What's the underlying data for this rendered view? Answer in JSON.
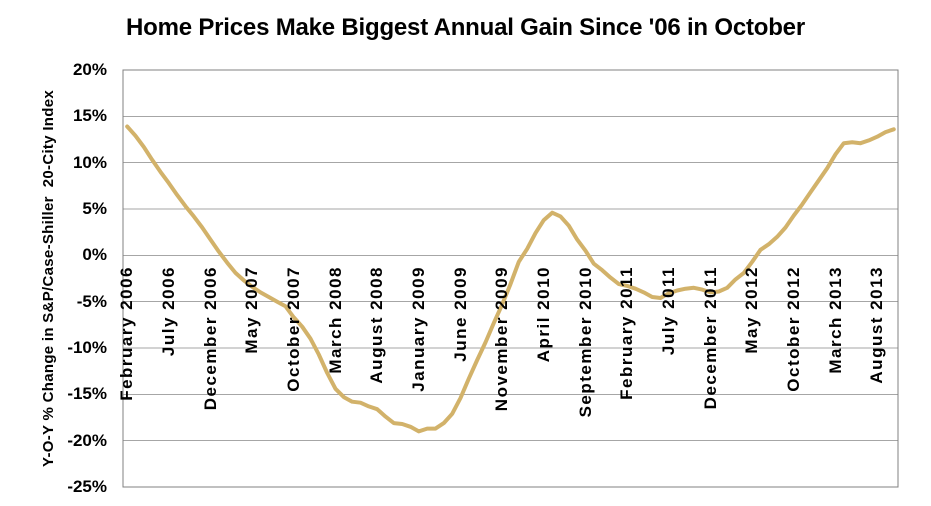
{
  "chart_data": {
    "type": "line",
    "title": "Home Prices Make Biggest Annual Gain Since '06 in October",
    "ylabel": "Y-O-Y % Change in S&P/Case-Shiller  20-City Index",
    "xlabel": "",
    "ylim": [
      -25,
      20
    ],
    "ytick_step_pct": 5,
    "ytick_labels": [
      "20%",
      "15%",
      "10%",
      "5%",
      "0%",
      "-5%",
      "-10%",
      "-15%",
      "-20%",
      "-25%"
    ],
    "x_interval": "monthly",
    "x_start": "February 2006",
    "x_end": "October 2013",
    "xtick_every": 5,
    "xtick_labels": [
      "February 2006",
      "July 2006",
      "December 2006",
      "May 2007",
      "October 2007",
      "March 2008",
      "August 2008",
      "January 2009",
      "June 2009",
      "November 2009",
      "April 2010",
      "September 2010",
      "February 2011",
      "July 2011",
      "December 2011",
      "May 2012",
      "October 2012",
      "March 2013",
      "August 2013"
    ],
    "values": [
      13.9,
      12.9,
      11.7,
      10.3,
      9.0,
      7.8,
      6.5,
      5.3,
      4.2,
      3.0,
      1.7,
      0.4,
      -0.8,
      -1.9,
      -2.7,
      -3.4,
      -4.0,
      -4.5,
      -5.0,
      -5.5,
      -6.7,
      -7.7,
      -9.0,
      -10.7,
      -12.7,
      -14.4,
      -15.3,
      -15.8,
      -15.9,
      -16.3,
      -16.6,
      -17.4,
      -18.1,
      -18.2,
      -18.5,
      -19.0,
      -18.7,
      -18.7,
      -18.1,
      -17.1,
      -15.4,
      -13.3,
      -11.3,
      -9.4,
      -7.3,
      -5.3,
      -3.1,
      -0.7,
      0.7,
      2.4,
      3.8,
      4.6,
      4.2,
      3.2,
      1.7,
      0.5,
      -0.9,
      -1.6,
      -2.4,
      -3.1,
      -3.3,
      -3.6,
      -4.0,
      -4.5,
      -4.6,
      -4.1,
      -3.8,
      -3.6,
      -3.5,
      -3.7,
      -4.0,
      -3.9,
      -3.5,
      -2.6,
      -1.9,
      -0.7,
      0.6,
      1.2,
      2.0,
      3.0,
      4.3,
      5.5,
      6.8,
      8.1,
      9.4,
      10.9,
      12.1,
      12.2,
      12.1,
      12.4,
      12.8,
      13.3,
      13.6
    ],
    "grid": true,
    "legend_position": "none",
    "line_color": "#D2B26A",
    "grid_color": "#A6A6A6",
    "axis_color": "#808080",
    "text_color": "#000000",
    "background": "#FFFFFF"
  }
}
